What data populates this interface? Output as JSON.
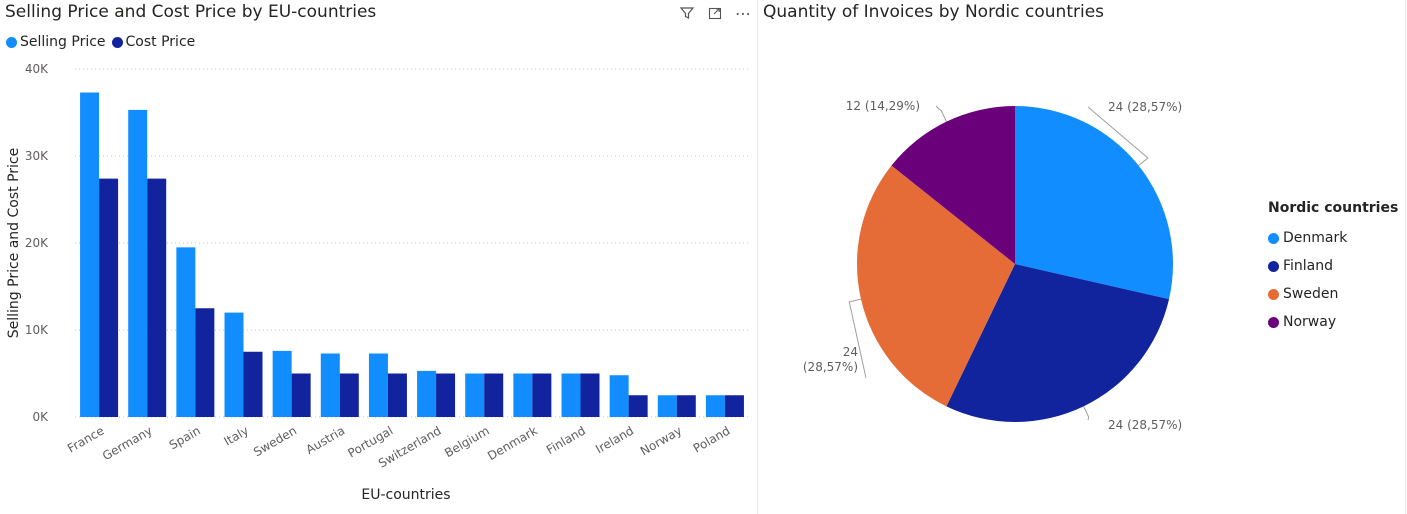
{
  "chart_data": [
    {
      "type": "bar",
      "title": "Selling Price and Cost Price by EU-countries",
      "xlabel": "EU-countries",
      "ylabel": "Selling Price and Cost Price",
      "ylim": [
        0,
        40000
      ],
      "yticks": [
        "0K",
        "10K",
        "20K",
        "30K",
        "40K"
      ],
      "ytick_values": [
        0,
        10000,
        20000,
        30000,
        40000
      ],
      "grid": true,
      "legend_position": "top-left",
      "categories": [
        "France",
        "Germany",
        "Spain",
        "Italy",
        "Sweden",
        "Austria",
        "Portugal",
        "Switzerland",
        "Belgium",
        "Denmark",
        "Finland",
        "Ireland",
        "Norway",
        "Poland"
      ],
      "series": [
        {
          "name": "Selling Price",
          "color": "#118DFF",
          "values": [
            37300,
            35300,
            19500,
            12000,
            7600,
            7300,
            7300,
            5300,
            5000,
            5000,
            5000,
            4800,
            2500,
            2500
          ]
        },
        {
          "name": "Cost Price",
          "color": "#12239E",
          "values": [
            27400,
            27400,
            12500,
            7500,
            5000,
            5000,
            5000,
            5000,
            5000,
            5000,
            5000,
            2500,
            2500,
            2500
          ]
        }
      ]
    },
    {
      "type": "pie",
      "title": "Quantity of Invoices by Nordic countries",
      "legend_title": "Nordic countries",
      "legend_position": "right",
      "slices": [
        {
          "label": "Denmark",
          "value": 24,
          "percent": "28,57%",
          "data_label": "24 (28,57%)",
          "color": "#118DFF"
        },
        {
          "label": "Finland",
          "value": 24,
          "percent": "28,57%",
          "data_label": "24 (28,57%)",
          "color": "#12239E"
        },
        {
          "label": "Sweden",
          "value": 24,
          "percent": "28,57%",
          "data_label": "24\n(28,57%)",
          "color": "#E66C37"
        },
        {
          "label": "Norway",
          "value": 12,
          "percent": "14,29%",
          "data_label": "12 (14,29%)",
          "color": "#6B007B"
        }
      ]
    }
  ],
  "toolbar": {
    "icons": [
      "filter-icon",
      "focus-mode-icon",
      "more-options-icon"
    ],
    "more_label": "⋯"
  }
}
